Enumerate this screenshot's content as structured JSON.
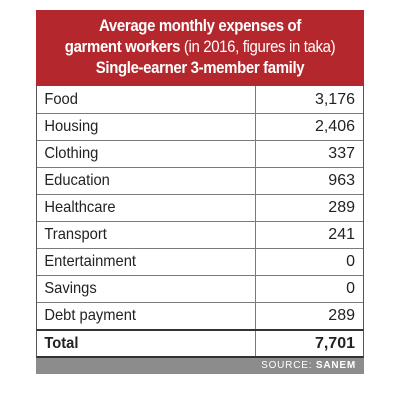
{
  "header": {
    "title_line1": "Average monthly expenses of",
    "title_line2_bold": "garment workers",
    "title_line2_light": "(in 2016, figures in taka)",
    "title_line3": "Single-earner 3-member family"
  },
  "chart_data": {
    "type": "table",
    "title": "Average monthly expenses of garment workers (in 2016, figures in taka) Single-earner 3-member family",
    "rows": [
      {
        "label": "Food",
        "value": "3,176"
      },
      {
        "label": "Housing",
        "value": "2,406"
      },
      {
        "label": "Clothing",
        "value": "337"
      },
      {
        "label": "Education",
        "value": "963"
      },
      {
        "label": "Healthcare",
        "value": "289"
      },
      {
        "label": "Transport",
        "value": "241"
      },
      {
        "label": "Entertainment",
        "value": "0"
      },
      {
        "label": "Savings",
        "value": "0"
      },
      {
        "label": "Debt payment",
        "value": "289"
      }
    ],
    "total": {
      "label": "Total",
      "value": "7,701"
    }
  },
  "source": {
    "prefix": "SOURCE:",
    "name": "SANEM"
  },
  "colors": {
    "header_bg": "#b3272d",
    "source_bg": "#8c8c8c"
  }
}
